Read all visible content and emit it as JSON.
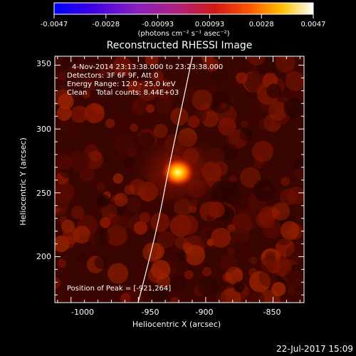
{
  "colorbar": {
    "ticks": [
      "-0.0047",
      "-0.0028",
      "-0.00093",
      "0.00093",
      "0.0028",
      "0.0047"
    ],
    "units_label": "(photons cm⁻² s⁻¹ asec⁻²)",
    "range": [
      -0.0047,
      0.0047
    ]
  },
  "image": {
    "title": "Reconstructed RHESSI Image",
    "info_lines": [
      "4-Nov-2014 23:13:38.000 to 23:23:38.000",
      "Detectors: 3F 6F 9F, Att 0",
      "Energy Range: 12.0 - 25.0 keV",
      "Clean    Total counts: 8.44E+03"
    ],
    "peak_label": "Position of Peak = [-921,264]",
    "peak_position_arcsec": [
      -921,
      264
    ],
    "xlabel": "Heliocentric X (arcsec)",
    "ylabel": "Heliocentric Y (arcsec)",
    "x_ticks": [
      "-1000",
      "-950",
      "-900",
      "-850"
    ],
    "y_ticks": [
      "200",
      "250",
      "300",
      "350"
    ],
    "x_range": [
      -1012,
      -827
    ],
    "y_range": [
      164,
      357
    ],
    "limb": "solar limb arc",
    "colormap": "rhessi-heat"
  },
  "footer": {
    "timestamp": "22-Jul-2017 15:09"
  }
}
